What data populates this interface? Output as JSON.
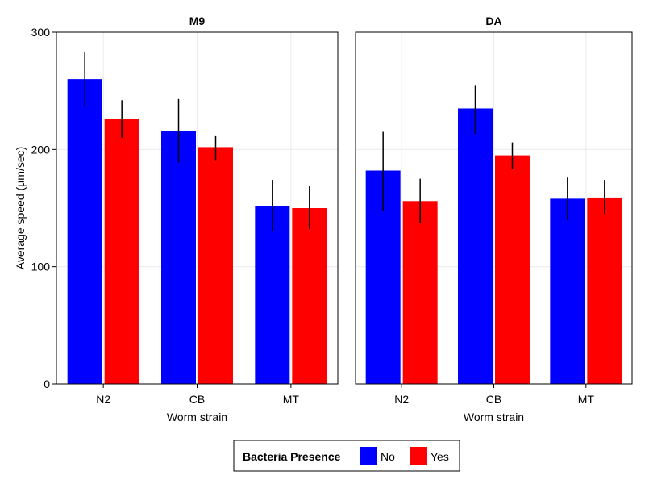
{
  "chart_data": {
    "type": "bar",
    "ylabel": "Average speed (µm/sec)",
    "ylim": [
      0,
      300
    ],
    "yticks": [
      "0",
      "100",
      "200",
      "300"
    ],
    "grid": true,
    "legend": {
      "title": "Bacteria Presence",
      "placement": "bottom-center"
    },
    "series": [
      {
        "name": "No",
        "color": "#0000ff"
      },
      {
        "name": "Yes",
        "color": "#ff0000"
      }
    ],
    "panels": [
      {
        "title": "M9",
        "xlabel": "Worm strain",
        "categories": [
          "N2",
          "CB",
          "MT"
        ],
        "values": [
          [
            260,
            226
          ],
          [
            216,
            202
          ],
          [
            152,
            150
          ]
        ],
        "error_low": [
          [
            236,
            210
          ],
          [
            189,
            191
          ],
          [
            130,
            132
          ]
        ],
        "error_high": [
          [
            283,
            242
          ],
          [
            243,
            212
          ],
          [
            174,
            169
          ]
        ]
      },
      {
        "title": "DA",
        "xlabel": "Worm strain",
        "categories": [
          "N2",
          "CB",
          "MT"
        ],
        "values": [
          [
            182,
            156
          ],
          [
            235,
            195
          ],
          [
            158,
            159
          ]
        ],
        "error_low": [
          [
            148,
            137
          ],
          [
            213,
            183
          ],
          [
            140,
            145
          ]
        ],
        "error_high": [
          [
            215,
            175
          ],
          [
            255,
            206
          ],
          [
            176,
            174
          ]
        ]
      }
    ]
  }
}
